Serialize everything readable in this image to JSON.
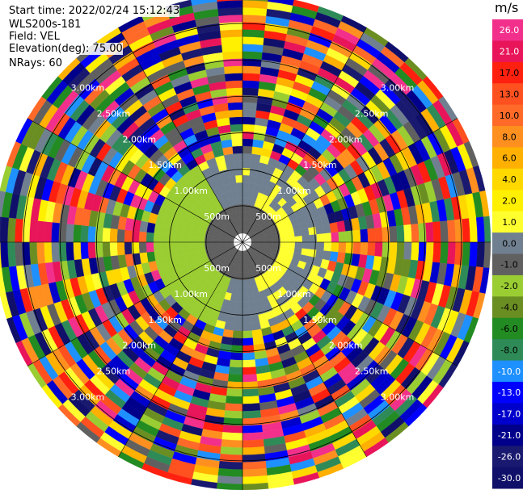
{
  "header": {
    "start_time": "Start time: 2022/02/24 15:12:43",
    "instrument": "WLS200s-181",
    "field": "Field: VEL",
    "elevation": "Elevation(deg): 75.00",
    "nrays": "NRays: 60"
  },
  "colorbar": {
    "unit": "m/s",
    "ticks": [
      "26.0",
      "21.0",
      "17.0",
      "13.0",
      "10.0",
      "8.0",
      "6.0",
      "4.0",
      "2.0",
      "1.0",
      "0.0",
      "-1.0",
      "-2.0",
      "-4.0",
      "-6.0",
      "-8.0",
      "-10.0",
      "-13.0",
      "-17.0",
      "-21.0",
      "-26.0",
      "-30.0"
    ],
    "colors": [
      "#f2308c",
      "#e8155a",
      "#ff2010",
      "#ff5020",
      "#ff6a28",
      "#ff9020",
      "#ffb000",
      "#ffd800",
      "#fff000",
      "#ffff30",
      "#708090",
      "#606060",
      "#9acd32",
      "#6b8e23",
      "#228b22",
      "#2e8b57",
      "#1e90ff",
      "#0000ff",
      "#0000cd",
      "#00008b",
      "#191970",
      "#10106a"
    ]
  },
  "chart_data": {
    "type": "heatmap",
    "subtype": "radar PPI (polar)",
    "field": "VEL",
    "units": "m/s",
    "nrays": 60,
    "range_rings_km": [
      0.5,
      1.0,
      1.5,
      2.0,
      2.5,
      3.0
    ],
    "range_ring_labels": [
      "500m",
      "1.00km",
      "1.50km",
      "2.00km",
      "2.50km",
      "3.00km"
    ],
    "radial_lines_deg": [
      0,
      30,
      60,
      90,
      120,
      150,
      180,
      210,
      240,
      270,
      300,
      330
    ],
    "max_range_km": 3.4,
    "value_range": [
      -30,
      26
    ],
    "inner_field_description_levels": {
      "west_sector_m_per_s": -2.0,
      "center_m_per_s": -1.0,
      "ring_m_per_s": 0.0,
      "east_sector_m_per_s": 1.0
    }
  }
}
